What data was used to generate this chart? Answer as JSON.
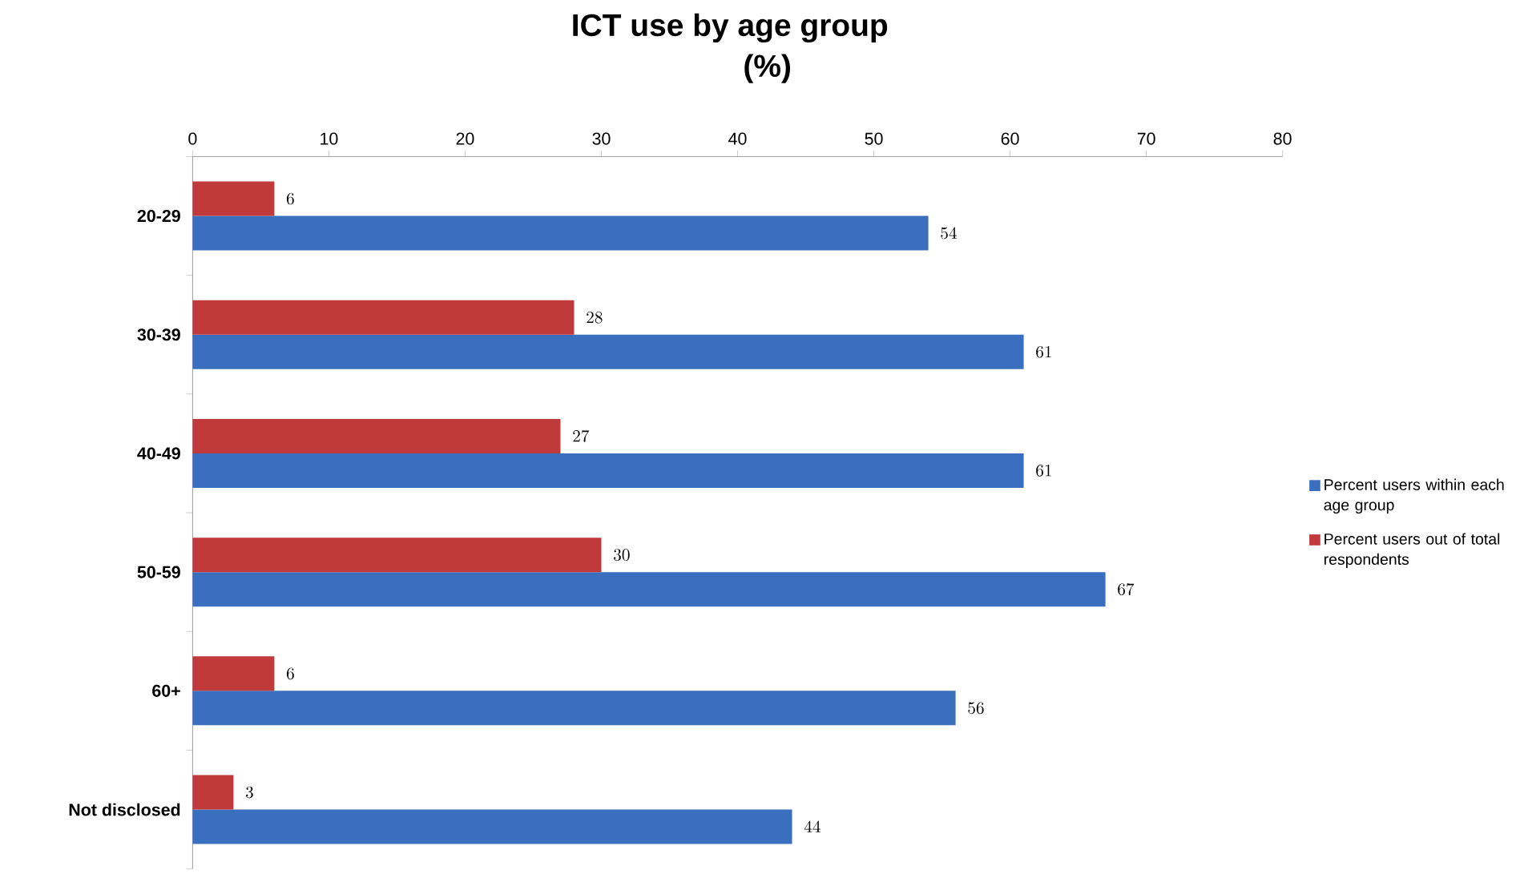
{
  "chart_data": {
    "type": "bar",
    "orientation": "horizontal",
    "title": "ICT use by age group",
    "subtitle": "(%)",
    "categories": [
      "20-29",
      "30-39",
      "40-49",
      "50-59",
      "60+",
      "Not disclosed"
    ],
    "series": [
      {
        "name": "Percent users within each age group",
        "color": "#3a6fbf",
        "values": [
          54,
          61,
          61,
          67,
          56,
          44
        ]
      },
      {
        "name": "Percent users out of total respondents",
        "color": "#c0393b",
        "values": [
          6,
          28,
          27,
          30,
          6,
          3
        ]
      }
    ],
    "xlim": [
      0,
      80
    ],
    "xticks": [
      0,
      10,
      20,
      30,
      40,
      50,
      60,
      70,
      80
    ],
    "data_labels": true,
    "legend": "right",
    "grid": false
  }
}
